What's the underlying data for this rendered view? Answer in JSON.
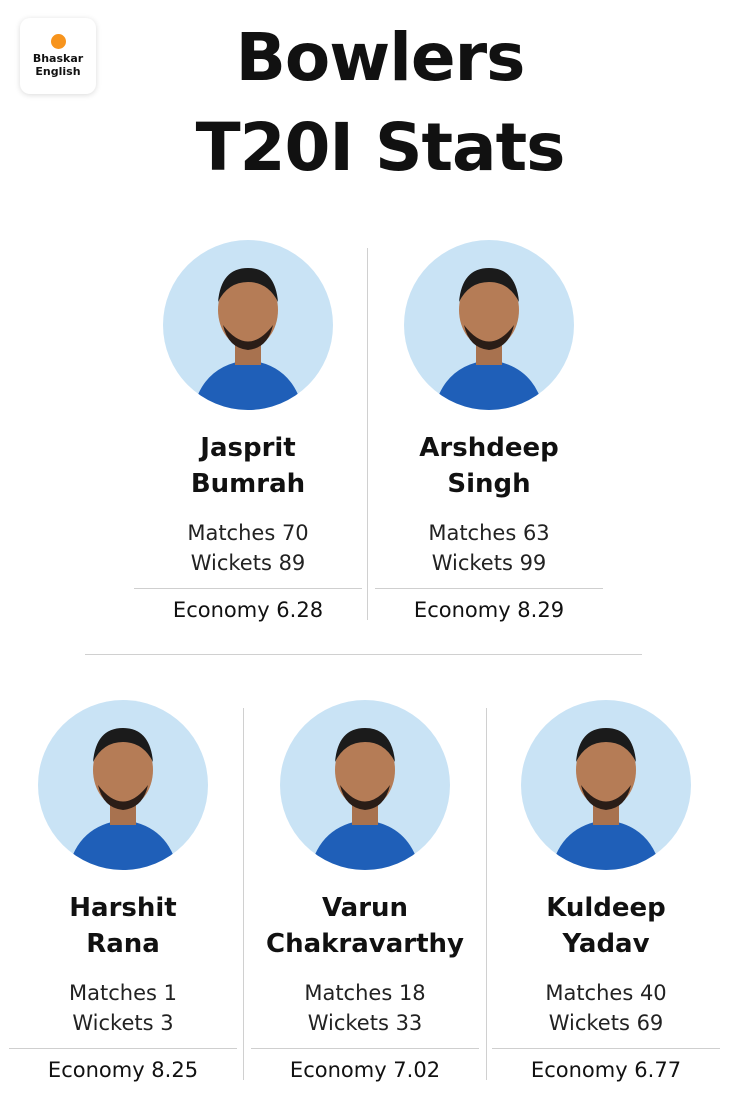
{
  "brand": {
    "line1": "Bhaskar",
    "line2": "English",
    "dot_color": "#f7941d"
  },
  "title": {
    "line1": "Bowlers",
    "line2": "T20I Stats"
  },
  "colors": {
    "avatar_bg": "#c9e3f5",
    "jersey": "#1f5fb8"
  },
  "players": [
    {
      "name1": "Jasprit",
      "name2": "Bumrah",
      "matches": "Matches 70",
      "wickets": "Wickets 89",
      "economy": "Economy 6.28"
    },
    {
      "name1": "Arshdeep",
      "name2": "Singh",
      "matches": "Matches 63",
      "wickets": "Wickets 99",
      "economy": "Economy 8.29"
    },
    {
      "name1": "Harshit",
      "name2": "Rana",
      "matches": "Matches 1",
      "wickets": "Wickets 3",
      "economy": "Economy 8.25"
    },
    {
      "name1": "Varun",
      "name2": "Chakravarthy",
      "matches": "Matches 18",
      "wickets": "Wickets 33",
      "economy": "Economy 7.02"
    },
    {
      "name1": "Kuldeep",
      "name2": "Yadav",
      "matches": "Matches 40",
      "wickets": "Wickets 69",
      "economy": "Economy 6.77"
    }
  ]
}
